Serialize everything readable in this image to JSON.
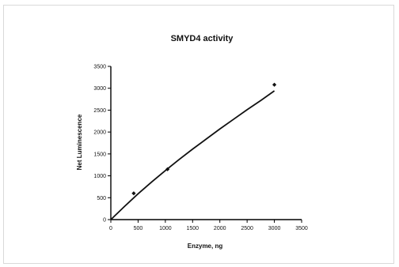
{
  "chart_data": {
    "type": "scatter",
    "title": "SMYD4 activity",
    "xlabel": "Enzyme, ng",
    "ylabel": "Net Luminescence",
    "xlim": [
      0,
      3500
    ],
    "ylim": [
      0,
      3500
    ],
    "x_ticks": [
      0,
      500,
      1000,
      1500,
      2000,
      2500,
      3000,
      3500
    ],
    "y_ticks": [
      0,
      500,
      1000,
      1500,
      2000,
      2500,
      3000,
      3500
    ],
    "x_tick_labels": [
      "0",
      "500",
      "1000",
      "1500",
      "2000",
      "2500",
      "3000",
      "3500"
    ],
    "y_tick_labels": [
      "0",
      "500",
      "1000",
      "1500",
      "2000",
      "2500",
      "3000",
      "3500"
    ],
    "points": [
      {
        "x": 420,
        "y": 600
      },
      {
        "x": 1040,
        "y": 1150
      },
      {
        "x": 3000,
        "y": 3080
      }
    ],
    "fit_curve": {
      "x": [
        0,
        250,
        500,
        750,
        1000,
        1250,
        1500,
        1750,
        2000,
        2250,
        2500,
        2750,
        3000
      ],
      "y": [
        0,
        300,
        590,
        860,
        1120,
        1370,
        1610,
        1840,
        2070,
        2290,
        2510,
        2720,
        2940
      ]
    },
    "grid": false,
    "legend": "none"
  }
}
